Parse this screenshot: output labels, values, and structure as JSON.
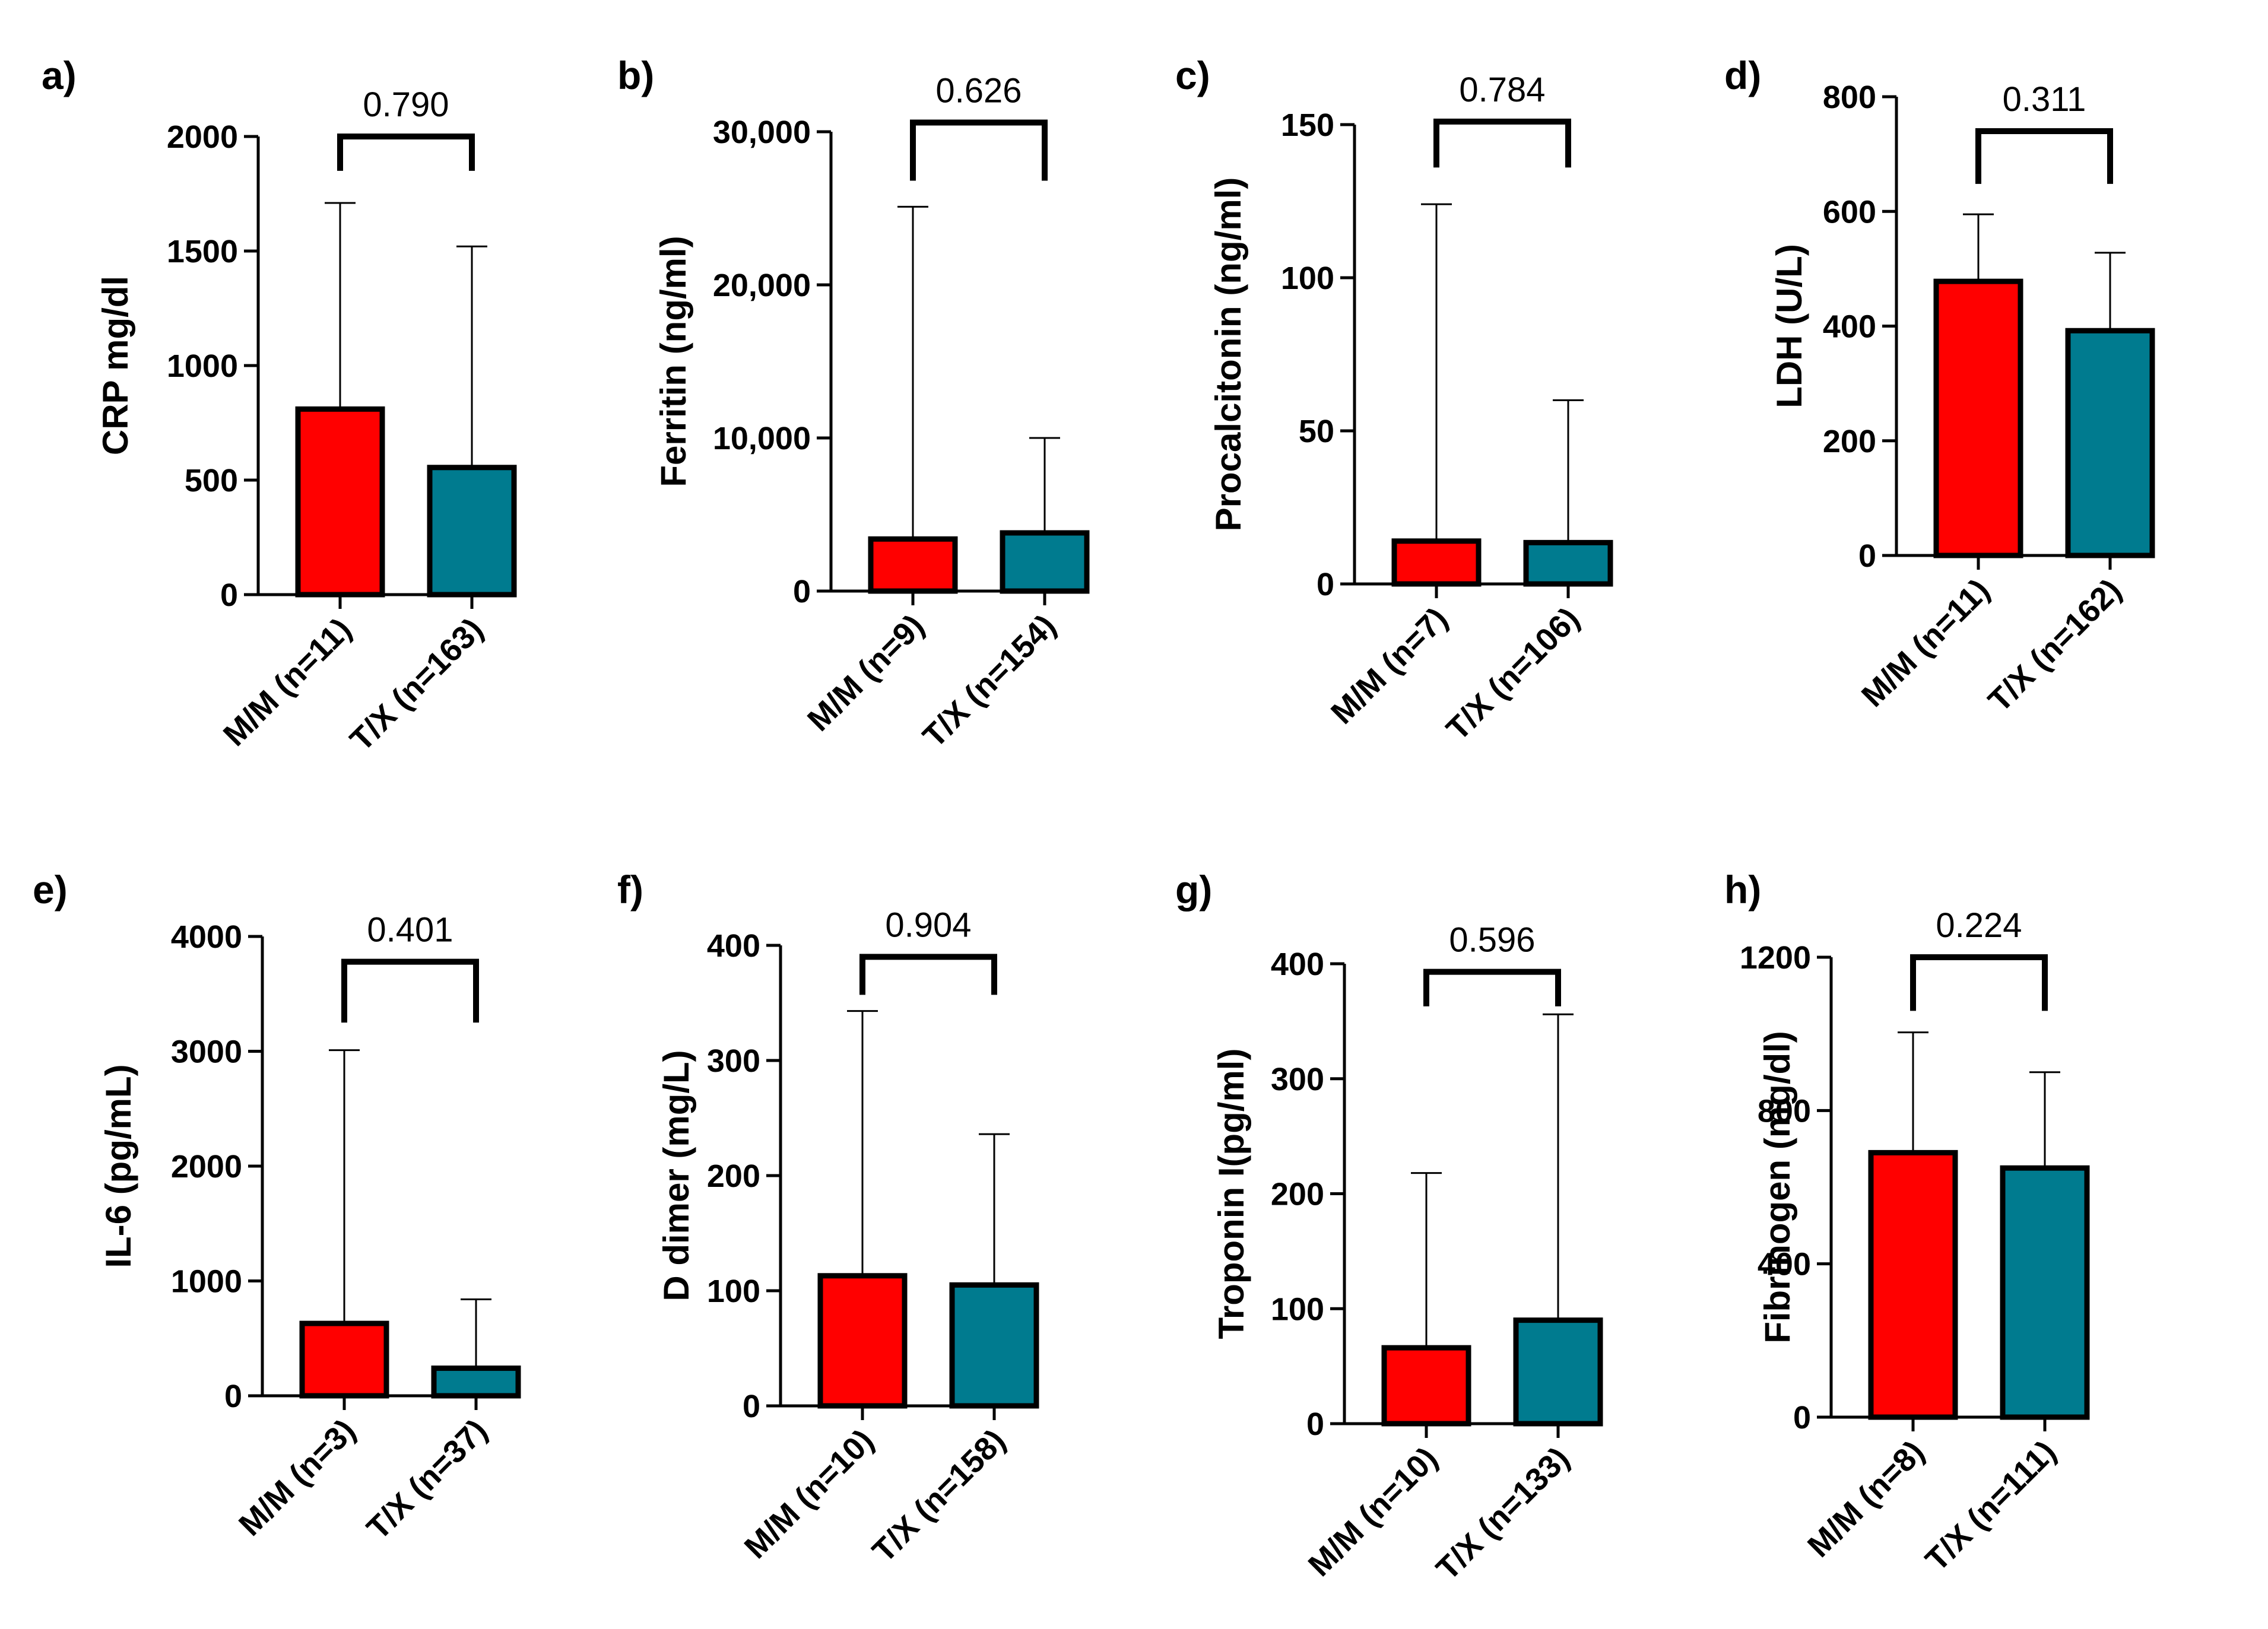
{
  "colors": {
    "mm": "#ff0000",
    "tx": "#007b8f",
    "ink": "#000000"
  },
  "chart_data": [
    {
      "panel": "a)",
      "type": "bar",
      "ylabel": "CRP mg/dl",
      "categories": [
        "M/M (n=11)",
        "T/X (n=163)"
      ],
      "values": [
        810,
        555
      ],
      "error_upper": [
        1710,
        1520
      ],
      "ylim": [
        0,
        2000
      ],
      "yticks": [
        0,
        500,
        1000,
        1500,
        2000
      ],
      "ytick_labels": [
        "0",
        "500",
        "1000",
        "1500",
        "2000"
      ],
      "p_value": "0.790",
      "bracket_y": 2000,
      "bracket_legs": [
        1850,
        1850
      ]
    },
    {
      "panel": "b)",
      "type": "bar",
      "ylabel": "Ferritin (ng/ml)",
      "categories": [
        "M/M (n=9)",
        "T/X (n=154)"
      ],
      "values": [
        3400,
        3800
      ],
      "error_upper": [
        25100,
        10000
      ],
      "ylim": [
        0,
        30000
      ],
      "yticks": [
        0,
        10000,
        20000,
        30000
      ],
      "ytick_labels": [
        "0",
        "10,000",
        "20,000",
        "30,000"
      ],
      "p_value": "0.626",
      "bracket_y": 30600,
      "bracket_legs": [
        26800,
        26800
      ]
    },
    {
      "panel": "c)",
      "type": "bar",
      "ylabel": "Procalcitonin (ng/ml)",
      "categories": [
        "M/M (n=7)",
        "T/X (n=106)"
      ],
      "values": [
        14,
        13.5
      ],
      "error_upper": [
        124,
        60
      ],
      "ylim": [
        0,
        150
      ],
      "yticks": [
        0,
        50,
        100,
        150
      ],
      "ytick_labels": [
        "0",
        "50",
        "100",
        "150"
      ],
      "p_value": "0.784",
      "bracket_y": 151,
      "bracket_legs": [
        136,
        136
      ]
    },
    {
      "panel": "d)",
      "type": "bar",
      "ylabel": "LDH (U/L)",
      "categories": [
        "M/M (n=11)",
        "T/X (n=162)"
      ],
      "values": [
        478,
        392
      ],
      "error_upper": [
        595,
        528
      ],
      "ylim": [
        0,
        800
      ],
      "yticks": [
        0,
        200,
        400,
        600,
        800
      ],
      "ytick_labels": [
        "0",
        "200",
        "400",
        "600",
        "800"
      ],
      "p_value": "0.311",
      "bracket_y": 740,
      "bracket_legs": [
        648,
        648
      ]
    },
    {
      "panel": "e)",
      "type": "bar",
      "ylabel": "IL-6 (pg/mL)",
      "categories": [
        "M/M (n=3)",
        "T/X (n=37)"
      ],
      "values": [
        630,
        240
      ],
      "error_upper": [
        3010,
        840
      ],
      "ylim": [
        0,
        4000
      ],
      "yticks": [
        0,
        1000,
        2000,
        3000,
        4000
      ],
      "ytick_labels": [
        "0",
        "1000",
        "2000",
        "3000",
        "4000"
      ],
      "p_value": "0.401",
      "bracket_y": 3780,
      "bracket_legs": [
        3250,
        3250
      ]
    },
    {
      "panel": "f)",
      "type": "bar",
      "ylabel": "D dimer (mg/L)",
      "categories": [
        "M/M (n=10)",
        "T/X (n=158)"
      ],
      "values": [
        113,
        105
      ],
      "error_upper": [
        343,
        236
      ],
      "ylim": [
        0,
        400
      ],
      "yticks": [
        0,
        100,
        200,
        300,
        400
      ],
      "ytick_labels": [
        "0",
        "100",
        "200",
        "300",
        "400"
      ],
      "p_value": "0.904",
      "bracket_y": 390,
      "bracket_legs": [
        357,
        357
      ]
    },
    {
      "panel": "g)",
      "type": "bar",
      "ylabel": "Troponin I(pg/ml)",
      "categories": [
        "M/M (n=10)",
        "T/X (n=133)"
      ],
      "values": [
        66,
        90
      ],
      "error_upper": [
        218,
        356
      ],
      "ylim": [
        0,
        400
      ],
      "yticks": [
        0,
        100,
        200,
        300,
        400
      ],
      "ytick_labels": [
        "0",
        "100",
        "200",
        "300",
        "400"
      ],
      "p_value": "0.596",
      "bracket_y": 393,
      "bracket_legs": [
        363,
        363
      ]
    },
    {
      "panel": "h)",
      "type": "bar",
      "ylabel": "Fibrinogen (mg/dl)",
      "categories": [
        "M/M (n=8)",
        "T/X (n=111)"
      ],
      "values": [
        690,
        650
      ],
      "error_upper": [
        1004,
        900
      ],
      "ylim": [
        0,
        1200
      ],
      "yticks": [
        0,
        400,
        800,
        1200
      ],
      "ytick_labels": [
        "0",
        "400",
        "800",
        "1200"
      ],
      "p_value": "0.224",
      "bracket_y": 1200,
      "bracket_legs": [
        1060,
        1060
      ]
    }
  ]
}
